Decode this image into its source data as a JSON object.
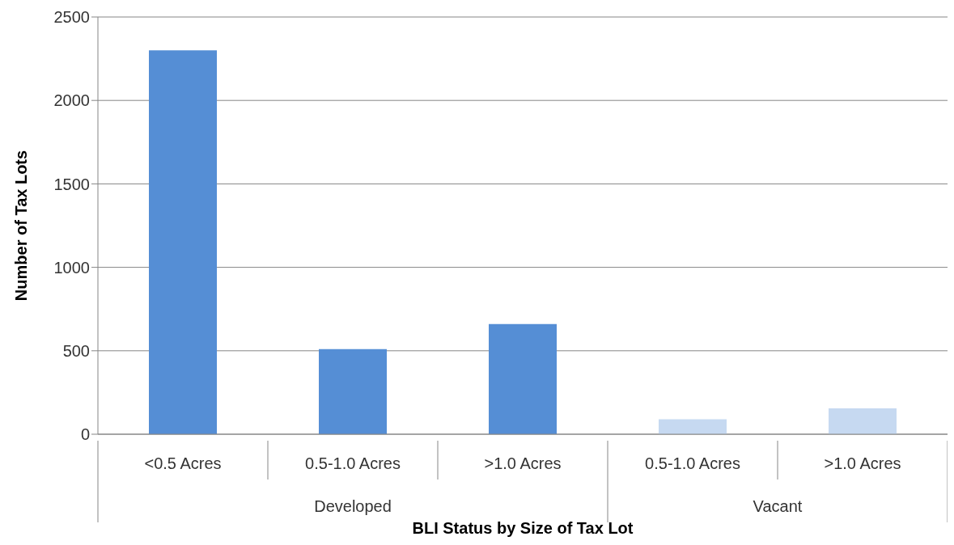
{
  "chart_data": {
    "type": "bar",
    "xlabel": "BLI Status by Size of Tax Lot",
    "ylabel": "Number of Tax Lots",
    "categories": [
      "<0.5 Acres",
      "0.5-1.0 Acres",
      ">1.0 Acres",
      "0.5-1.0 Acres",
      ">1.0 Acres"
    ],
    "series": [
      {
        "color": "#558ed5",
        "values": [
          2300,
          510,
          660,
          null,
          null
        ]
      },
      {
        "color": "#c6d9f1",
        "values": [
          null,
          null,
          null,
          90,
          155
        ]
      }
    ],
    "annotations": [
      "Developed",
      "Vacant"
    ],
    "ylim": [
      0,
      2500
    ],
    "yticks": [
      0,
      500,
      1000,
      1500,
      2000,
      2500
    ],
    "grid": "y",
    "legend": false
  }
}
